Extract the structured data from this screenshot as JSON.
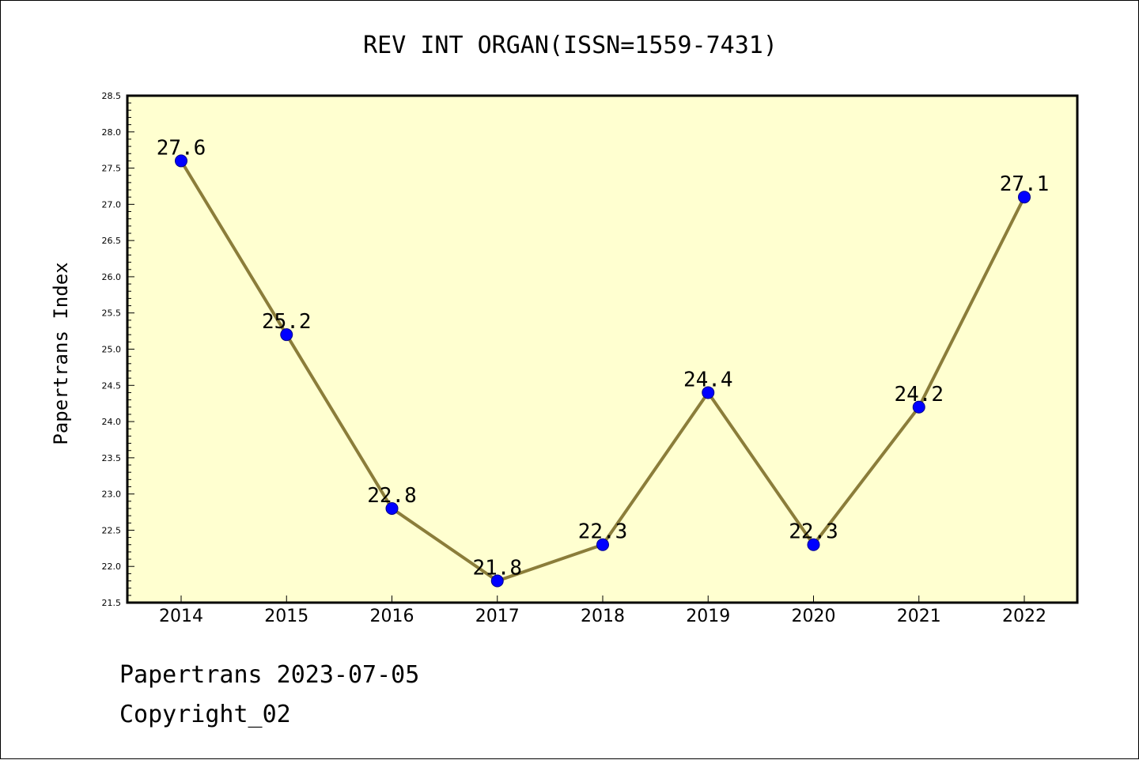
{
  "chart_data": {
    "type": "line",
    "title": "REV INT ORGAN(ISSN=1559-7431)",
    "ylabel": "Papertrans Index",
    "xlabel": "",
    "categories": [
      "2014",
      "2015",
      "2016",
      "2017",
      "2018",
      "2019",
      "2020",
      "2021",
      "2022"
    ],
    "series": [
      {
        "values": [
          27.6,
          25.2,
          22.8,
          21.8,
          22.3,
          24.4,
          22.3,
          24.2,
          27.1
        ]
      }
    ],
    "data_labels": [
      "27.6",
      "25.2",
      "22.8",
      "21.8",
      "22.3",
      "24.4",
      "22.3",
      "24.2",
      "27.1"
    ],
    "ylim": [
      21.5,
      28.5
    ],
    "yticks": [
      "21.5",
      "22.0",
      "22.5",
      "23.0",
      "23.5",
      "24.0",
      "24.5",
      "25.0",
      "25.5",
      "26.0",
      "26.5",
      "27.0",
      "27.5",
      "28.0",
      "28.5"
    ],
    "grid": false,
    "colors": {
      "plot_background": "#ffffd0",
      "line": "#8b7d3a",
      "marker": "#0000ff",
      "axes": "#000000"
    }
  },
  "footer": {
    "line1": "Papertrans 2023-07-05",
    "line2": "Copyright_02"
  }
}
